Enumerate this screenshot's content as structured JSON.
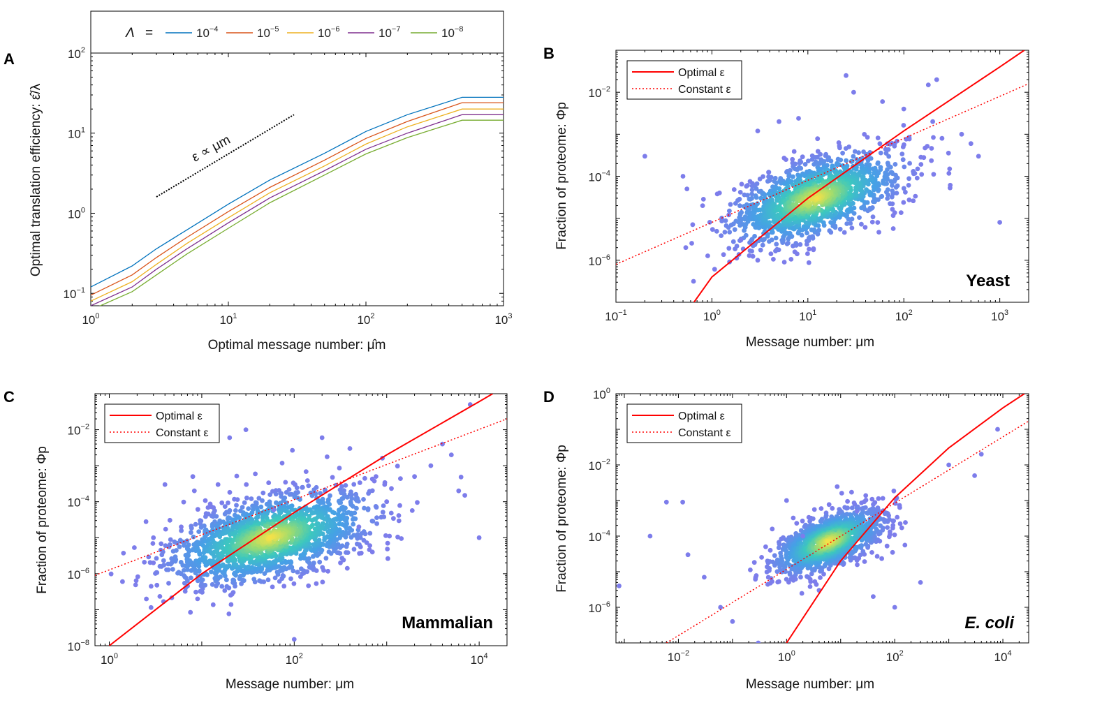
{
  "chart_data": [
    {
      "panel": "A",
      "type": "line",
      "xscale": "log",
      "yscale": "log",
      "xlim": [
        1,
        1000
      ],
      "ylim": [
        0.07,
        100
      ],
      "xticks": [
        {
          "base": "10",
          "exp": "0"
        },
        {
          "base": "10",
          "exp": "1"
        },
        {
          "base": "10",
          "exp": "2"
        },
        {
          "base": "10",
          "exp": "3"
        }
      ],
      "yticks": [
        {
          "base": "10",
          "exp": "-1"
        },
        {
          "base": "10",
          "exp": "0"
        },
        {
          "base": "10",
          "exp": "1"
        },
        {
          "base": "10",
          "exp": "2"
        }
      ],
      "xlabel": "Optimal message number: μ̂m",
      "ylabel": "Optimal translation efficiency: ε̂/λ",
      "legend_title": "Λ",
      "legend_eq": "=",
      "x": [
        1,
        2,
        3,
        5,
        10,
        20,
        50,
        100,
        200,
        500,
        1000
      ],
      "series": [
        {
          "name": "10",
          "exp": "−4",
          "color": "#0072BD",
          "values": [
            0.12,
            0.22,
            0.36,
            0.62,
            1.3,
            2.6,
            5.6,
            10.5,
            17,
            28,
            28
          ]
        },
        {
          "name": "10",
          "exp": "−5",
          "color": "#D95319",
          "values": [
            0.095,
            0.17,
            0.28,
            0.5,
            1.05,
            2.1,
            4.6,
            8.6,
            14,
            24,
            24
          ]
        },
        {
          "name": "10",
          "exp": "−6",
          "color": "#EDB120",
          "values": [
            0.08,
            0.14,
            0.23,
            0.42,
            0.88,
            1.8,
            3.9,
            7.3,
            12,
            20,
            20
          ]
        },
        {
          "name": "10",
          "exp": "−7",
          "color": "#7E2F8E",
          "values": [
            0.07,
            0.12,
            0.2,
            0.36,
            0.76,
            1.55,
            3.4,
            6.3,
            10,
            17,
            17
          ]
        },
        {
          "name": "10",
          "exp": "−8",
          "color": "#77AC30",
          "values": [
            0.062,
            0.105,
            0.17,
            0.31,
            0.65,
            1.35,
            3.0,
            5.5,
            8.8,
            14.5,
            14.5
          ]
        }
      ],
      "annotation": "ε ∝ μm",
      "annotation_line": {
        "x": [
          3,
          30
        ],
        "y": [
          1.6,
          17
        ]
      },
      "panel_label": "A"
    },
    {
      "panel": "B",
      "type": "scatter",
      "xscale": "log",
      "yscale": "log",
      "xlim": [
        0.1,
        2000
      ],
      "ylim": [
        1e-07,
        0.1
      ],
      "xticks": [
        {
          "base": "10",
          "exp": "-1"
        },
        {
          "base": "10",
          "exp": "0"
        },
        {
          "base": "10",
          "exp": "1"
        },
        {
          "base": "10",
          "exp": "2"
        },
        {
          "base": "10",
          "exp": "3"
        }
      ],
      "yticks": [
        {
          "base": "10",
          "exp": "-6"
        },
        {
          "base": "10",
          "exp": "-4"
        },
        {
          "base": "10",
          "exp": "-2"
        }
      ],
      "xlabel": "Message number: μm",
      "ylabel": "Fraction of proteome: Φp",
      "organism": "Yeast",
      "legend": [
        "Optimal ε",
        "Constant ε"
      ],
      "optimal_line": {
        "x": [
          0.65,
          1,
          10,
          100,
          1000,
          1800
        ],
        "y": [
          1e-07,
          4e-07,
          3e-05,
          0.0012,
          0.04,
          0.1
        ]
      },
      "constant_line": {
        "x": [
          0.1,
          2000
        ],
        "y": [
          8e-07,
          0.016
        ]
      },
      "cloud": {
        "center": [
          12,
          3e-05
        ],
        "spread": [
          0.45,
          0.55
        ],
        "n": 1400,
        "corr": 0.55
      },
      "outliers": [
        [
          0.2,
          0.0003
        ],
        [
          0.5,
          0.0001
        ],
        [
          0.55,
          5e-05
        ],
        [
          0.8,
          2e-05
        ],
        [
          1.2,
          4e-05
        ],
        [
          1.5,
          1.2e-05
        ],
        [
          2,
          3e-06
        ],
        [
          3,
          1e-06
        ],
        [
          3,
          0.0012
        ],
        [
          5,
          0.002
        ],
        [
          8,
          0.0024
        ],
        [
          25,
          0.025
        ],
        [
          30,
          0.01
        ],
        [
          60,
          0.006
        ],
        [
          100,
          0.004
        ],
        [
          200,
          0.002
        ],
        [
          250,
          0.0008
        ],
        [
          300,
          0.00015
        ],
        [
          400,
          0.001
        ],
        [
          500,
          0.0006
        ],
        [
          600,
          0.0003
        ],
        [
          1000,
          8e-06
        ],
        [
          180,
          0.015
        ],
        [
          220,
          0.02
        ]
      ],
      "panel_label": "B"
    },
    {
      "panel": "C",
      "type": "scatter",
      "xscale": "log",
      "yscale": "log",
      "xlim": [
        0.7,
        20000
      ],
      "ylim": [
        1e-08,
        0.1
      ],
      "xticks": [
        {
          "base": "10",
          "exp": "0"
        },
        {
          "base": "10",
          "exp": "2"
        },
        {
          "base": "10",
          "exp": "4"
        }
      ],
      "yticks": [
        {
          "base": "10",
          "exp": "-8"
        },
        {
          "base": "10",
          "exp": "-6"
        },
        {
          "base": "10",
          "exp": "-4"
        },
        {
          "base": "10",
          "exp": "-2"
        }
      ],
      "xlabel": "Message number: μm",
      "ylabel": "Fraction of proteome: Φp",
      "organism": "Mammalian",
      "legend": [
        "Optimal ε",
        "Constant ε"
      ],
      "optimal_line": {
        "x": [
          1,
          10,
          100,
          1000,
          10000,
          14000
        ],
        "y": [
          1e-08,
          1e-06,
          5e-05,
          0.002,
          0.06,
          0.1
        ]
      },
      "constant_line": {
        "x": [
          0.7,
          20000
        ],
        "y": [
          9e-07,
          0.02
        ]
      },
      "cloud": {
        "center": [
          55,
          1e-05
        ],
        "spread": [
          0.55,
          0.65
        ],
        "n": 1700,
        "corr": 0.5
      },
      "outliers": [
        [
          3,
          1e-05
        ],
        [
          3,
          2e-06
        ],
        [
          4,
          0.0003
        ],
        [
          6,
          2e-05
        ],
        [
          8,
          0.0005
        ],
        [
          9,
          2e-07
        ],
        [
          15,
          0.0003
        ],
        [
          20,
          0.006
        ],
        [
          30,
          0.01
        ],
        [
          60,
          6e-05
        ],
        [
          100,
          1.5e-08
        ],
        [
          200,
          0.006
        ],
        [
          400,
          0.003
        ],
        [
          500,
          2e-05
        ],
        [
          700,
          4e-06
        ],
        [
          1000,
          0.0001
        ],
        [
          2000,
          0.0005
        ],
        [
          3000,
          0.001
        ],
        [
          4000,
          0.004
        ],
        [
          5000,
          0.002
        ],
        [
          6000,
          0.0002
        ],
        [
          7000,
          0.00015
        ],
        [
          10000,
          1e-05
        ],
        [
          8000,
          0.05
        ]
      ],
      "panel_label": "C"
    },
    {
      "panel": "D",
      "type": "scatter",
      "xscale": "log",
      "yscale": "log",
      "xlim": [
        0.0007,
        30000
      ],
      "ylim": [
        1e-07,
        1
      ],
      "xticks": [
        {
          "base": "10",
          "exp": "-2"
        },
        {
          "base": "10",
          "exp": "0"
        },
        {
          "base": "10",
          "exp": "2"
        },
        {
          "base": "10",
          "exp": "4"
        }
      ],
      "yticks": [
        {
          "base": "10",
          "exp": "-6"
        },
        {
          "base": "10",
          "exp": "-4"
        },
        {
          "base": "10",
          "exp": "-2"
        },
        {
          "base": "10",
          "exp": "0"
        }
      ],
      "xlabel": "Message number: μm",
      "ylabel": "Fraction of proteome: Φp",
      "organism": "E. coli",
      "legend": [
        "Optimal ε",
        "Constant ε"
      ],
      "optimal_line": {
        "x": [
          1,
          10,
          100,
          1000,
          10000,
          25000
        ],
        "y": [
          1e-07,
          2e-05,
          0.0012,
          0.03,
          0.4,
          1
        ]
      },
      "constant_line": {
        "x": [
          0.006,
          30000
        ],
        "y": [
          1e-07,
          0.17
        ]
      },
      "cloud": {
        "center": [
          6,
          7e-05
        ],
        "spread": [
          0.5,
          0.45
        ],
        "n": 1300,
        "corr": 0.6
      },
      "outliers": [
        [
          0.0008,
          4e-06
        ],
        [
          0.003,
          0.0001
        ],
        [
          0.006,
          0.0009
        ],
        [
          0.012,
          0.0009
        ],
        [
          0.015,
          3e-05
        ],
        [
          0.03,
          7e-06
        ],
        [
          0.06,
          1e-06
        ],
        [
          0.1,
          4e-07
        ],
        [
          0.3,
          1e-07
        ],
        [
          0.5,
          4e-05
        ],
        [
          1,
          0.001
        ],
        [
          2,
          0.0001
        ],
        [
          4,
          3e-06
        ],
        [
          20,
          0.0005
        ],
        [
          40,
          2e-06
        ],
        [
          100,
          1e-06
        ],
        [
          300,
          5e-06
        ],
        [
          1000,
          0.01
        ],
        [
          3000,
          0.005
        ],
        [
          4000,
          0.02
        ],
        [
          8000,
          0.1
        ]
      ],
      "panel_label": "D"
    }
  ]
}
